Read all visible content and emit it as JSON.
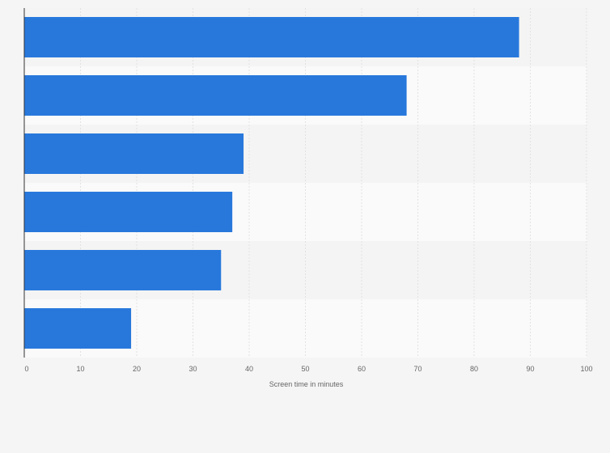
{
  "chart_data": {
    "type": "bar",
    "orientation": "horizontal",
    "categories": [
      "",
      "",
      "",
      "",
      "",
      ""
    ],
    "values": [
      88,
      68,
      39,
      37,
      35,
      19
    ],
    "xlabel": "Screen time in minutes",
    "ylabel": "",
    "xlim": [
      0,
      100
    ],
    "x_ticks": [
      0,
      10,
      20,
      30,
      40,
      50,
      60,
      70,
      80,
      90,
      100
    ],
    "grid": "vertical",
    "bar_color": "#2878dc",
    "band_colors": [
      "#f4f4f4",
      "#fafafa"
    ]
  }
}
